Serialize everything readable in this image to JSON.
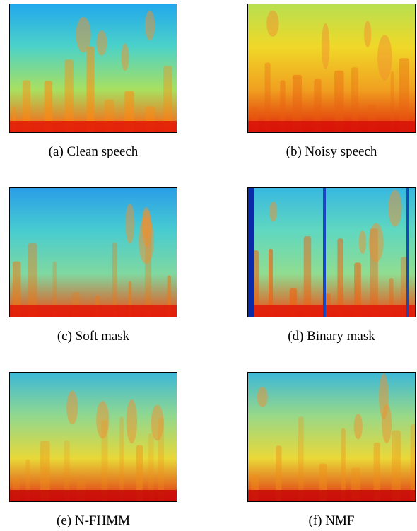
{
  "panels": [
    {
      "caption": "(a) Clean speech"
    },
    {
      "caption": "(b) Noisy speech"
    },
    {
      "caption": "(c) Soft mask"
    },
    {
      "caption": "(d) Binary mask"
    },
    {
      "caption": "(e) N-FHMM"
    },
    {
      "caption": "(f) NMF"
    }
  ]
}
